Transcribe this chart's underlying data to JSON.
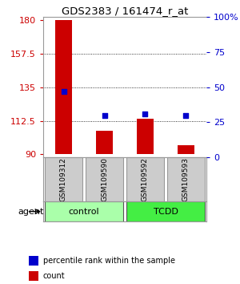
{
  "title": "GDS2383 / 161474_r_at",
  "samples": [
    "GSM109312",
    "GSM109590",
    "GSM109592",
    "GSM109593"
  ],
  "bar_values": [
    180,
    106,
    114,
    96
  ],
  "bar_base": 90,
  "percentile_values": [
    47,
    30,
    31,
    30
  ],
  "bar_color": "#cc0000",
  "dot_color": "#0000cc",
  "ylim_left": [
    88,
    182
  ],
  "yticks_left": [
    90,
    112.5,
    135,
    157.5,
    180
  ],
  "ytick_labels_left": [
    "90",
    "112.5",
    "135",
    "157.5",
    "180"
  ],
  "ylim_right": [
    0,
    100
  ],
  "yticks_right": [
    0,
    25,
    50,
    75,
    100
  ],
  "ytick_labels_right": [
    "0",
    "25",
    "50",
    "75",
    "100%"
  ],
  "groups": [
    {
      "label": "control",
      "indices": [
        0,
        1
      ],
      "color": "#aaffaa"
    },
    {
      "label": "TCDD",
      "indices": [
        2,
        3
      ],
      "color": "#44ee44"
    }
  ],
  "group_label": "agent",
  "legend_items": [
    {
      "color": "#cc0000",
      "label": "count"
    },
    {
      "color": "#0000cc",
      "label": "percentile rank within the sample"
    }
  ],
  "bg_color": "#ffffff",
  "sample_box_color": "#cccccc",
  "left_tick_color": "#cc0000",
  "right_tick_color": "#0000cc"
}
